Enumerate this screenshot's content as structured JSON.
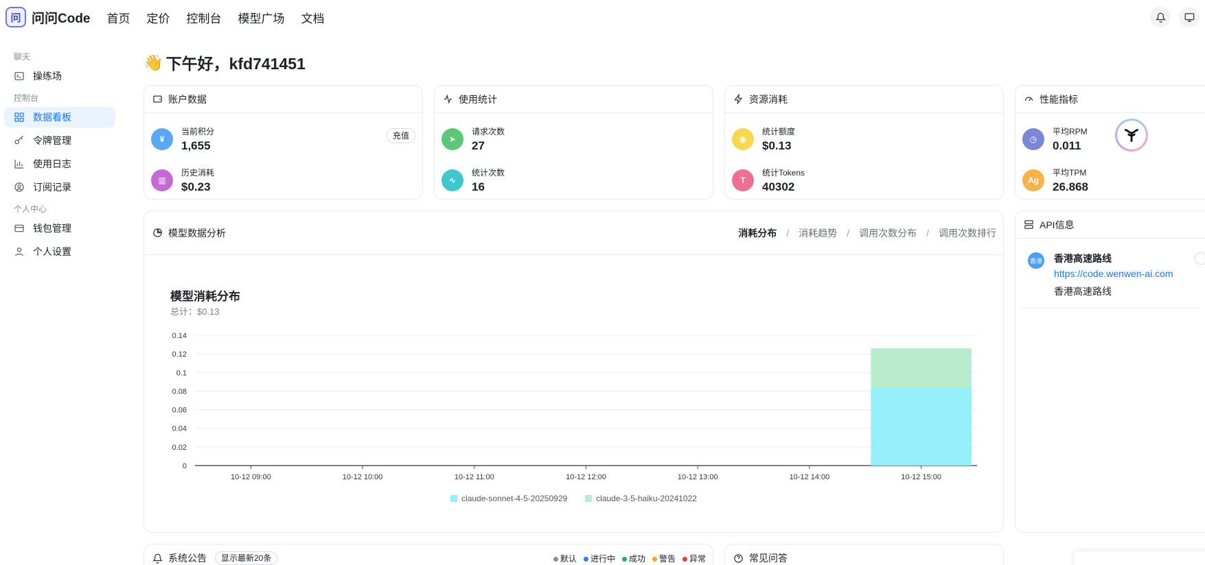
{
  "brand": {
    "logo_char": "问",
    "name": "问问Code"
  },
  "nav": [
    "首页",
    "定价",
    "控制台",
    "模型广场",
    "文档"
  ],
  "sidebar": {
    "groups": [
      {
        "label": "聊天",
        "items": [
          {
            "label": "操练场",
            "icon": "terminal-icon"
          }
        ]
      },
      {
        "label": "控制台",
        "items": [
          {
            "label": "数据看板",
            "icon": "dashboard-icon",
            "active": true
          },
          {
            "label": "令牌管理",
            "icon": "key-icon"
          },
          {
            "label": "使用日志",
            "icon": "bar-chart-icon"
          },
          {
            "label": "订阅记录",
            "icon": "user-circle-icon"
          }
        ]
      },
      {
        "label": "个人中心",
        "items": [
          {
            "label": "钱包管理",
            "icon": "wallet-icon"
          },
          {
            "label": "个人设置",
            "icon": "person-icon"
          }
        ]
      }
    ]
  },
  "greeting": {
    "emoji": "👋",
    "text": "下午好，kfd741451"
  },
  "cards": {
    "account": {
      "title": "账户数据",
      "recharge": "充值",
      "rows": [
        {
          "label": "当前积分",
          "value": "1,655",
          "color": "#5aa8f5"
        },
        {
          "label": "历史消耗",
          "value": "$0.23",
          "color": "#c469d6"
        }
      ]
    },
    "usage": {
      "title": "使用统计",
      "rows": [
        {
          "label": "请求次数",
          "value": "27",
          "color": "#5bc878"
        },
        {
          "label": "统计次数",
          "value": "16",
          "color": "#3fc7d0"
        }
      ]
    },
    "resource": {
      "title": "资源消耗",
      "rows": [
        {
          "label": "统计额度",
          "value": "$0.13",
          "color": "#f7d84e"
        },
        {
          "label": "统计Tokens",
          "value": "40302",
          "color": "#ef6f93"
        }
      ]
    },
    "perf": {
      "title": "性能指标",
      "rows": [
        {
          "label": "平均RPM",
          "value": "0.011",
          "color": "#7a86d6"
        },
        {
          "label": "平均TPM",
          "value": "26.868",
          "color": "#f7b24a",
          "icon_text": "Ag"
        }
      ]
    }
  },
  "analysis": {
    "title": "模型数据分析",
    "tabs": [
      "消耗分布",
      "消耗趋势",
      "调用次数分布",
      "调用次数排行"
    ],
    "active_tab": 0
  },
  "chart_data": {
    "type": "bar",
    "title": "模型消耗分布",
    "subtitle": "总计：$0.13",
    "categories": [
      "10-12 09:00",
      "10-12 10:00",
      "10-12 11:00",
      "10-12 12:00",
      "10-12 13:00",
      "10-12 14:00",
      "10-12 15:00"
    ],
    "stacked": true,
    "series": [
      {
        "name": "claude-sonnet-4-5-20250929",
        "color": "#96eefb",
        "values": [
          0,
          0,
          0,
          0,
          0,
          0,
          0.084
        ]
      },
      {
        "name": "claude-3-5-haiku-20241022",
        "color": "#b9ebcd",
        "values": [
          0,
          0,
          0,
          0,
          0,
          0,
          0.042
        ]
      }
    ],
    "ylim": [
      0,
      0.14
    ],
    "yticks": [
      "0.14",
      "0.12",
      "0.1",
      "0.08",
      "0.06",
      "0.04",
      "0.02",
      "0"
    ],
    "grid": true,
    "legend": "bottom"
  },
  "api": {
    "title": "API信息",
    "items": [
      {
        "badge": "香港",
        "name": "香港高速路线",
        "url": "https://code.wenwen-ai.com",
        "desc": "香港高速路线"
      }
    ]
  },
  "notice": {
    "title": "系统公告",
    "pill": "显示最新20条",
    "legend": [
      {
        "label": "默认",
        "color": "#8a9099"
      },
      {
        "label": "进行中",
        "color": "#2f7cf6"
      },
      {
        "label": "成功",
        "color": "#1fb06a"
      },
      {
        "label": "警告",
        "color": "#f5a623"
      },
      {
        "label": "异常",
        "color": "#ee3b3b"
      }
    ]
  },
  "faq": {
    "title": "常见问答"
  }
}
